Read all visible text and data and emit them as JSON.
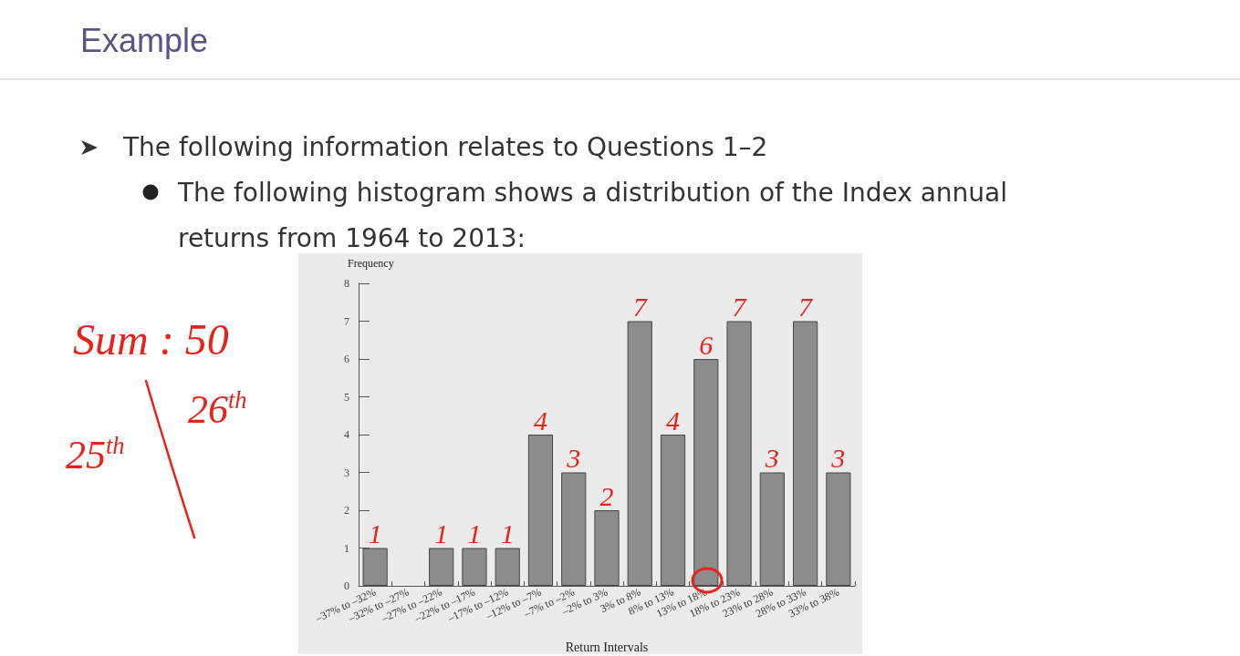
{
  "chart_data": {
    "type": "bar",
    "title": "Example",
    "annotations": [
      "The following information relates to Questions 1–2",
      "The following histogram shows a distribution of the Index annual returns from 1964 to 2013:",
      "Sum : 50",
      "25$^{th}$",
      "26$^{th}$"
    ],
    "xlabel": "Return Intervals",
    "ylabel": "Frequency",
    "categories": [
      "–37% to –32%",
      "–32% to –27%",
      "–27% to –22%",
      "–22% to –17%",
      "–17% to –12%",
      "–12% to –7%",
      "–7% to –2%",
      "–2% to 3%",
      "3% to 8%",
      "8% to 13%",
      "13% to 18%",
      "18% to 23%",
      "23% to 28%",
      "28% to 33%",
      "33% to 38%"
    ],
    "values": [
      1,
      0,
      1,
      1,
      1,
      4,
      3,
      2,
      7,
      4,
      6,
      7,
      3,
      7,
      3
    ],
    "value_labels": [
      "1",
      null,
      "1",
      "1",
      "1",
      "4",
      "3",
      "2",
      "7",
      "4",
      "6",
      "7",
      "3",
      "7",
      "3"
    ],
    "color": "#8c8c8c",
    "ylim": [
      0,
      8
    ],
    "yticks": [
      0,
      1,
      2,
      3,
      4,
      5,
      6,
      7,
      8
    ]
  }
}
